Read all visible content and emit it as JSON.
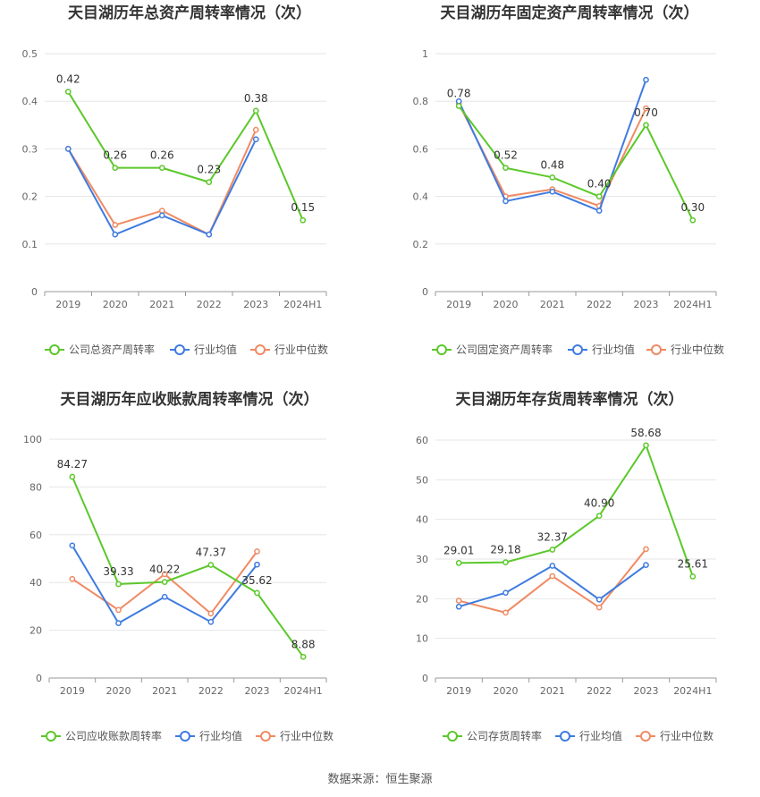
{
  "source_note": "数据来源：恒生聚源",
  "chart_data": [
    {
      "type": "line",
      "title": "天目湖历年总资产周转率情况（次）",
      "categories": [
        "2019",
        "2020",
        "2021",
        "2022",
        "2023",
        "2024H1"
      ],
      "ylim": [
        0,
        0.5
      ],
      "yticks": [
        "0",
        "0.1",
        "0.2",
        "0.3",
        "0.4",
        "0.5"
      ],
      "legend_position": "bottom",
      "grid": true,
      "series": [
        {
          "name": "公司总资产周转率",
          "color": "#5bc82a",
          "values": [
            0.42,
            0.26,
            0.26,
            0.23,
            0.38,
            0.15
          ],
          "data_labels": [
            "0.42",
            "0.26",
            "0.26",
            "0.23",
            "0.38",
            "0.15"
          ]
        },
        {
          "name": "行业均值",
          "color": "#3f7be0",
          "values": [
            0.3,
            0.12,
            0.16,
            0.12,
            0.32,
            null
          ]
        },
        {
          "name": "行业中位数",
          "color": "#f08a62",
          "values": [
            0.3,
            0.14,
            0.17,
            0.12,
            0.34,
            null
          ]
        }
      ]
    },
    {
      "type": "line",
      "title": "天目湖历年固定资产周转率情况（次）",
      "categories": [
        "2019",
        "2020",
        "2021",
        "2022",
        "2023",
        "2024H1"
      ],
      "ylim": [
        0,
        1
      ],
      "yticks": [
        "0",
        "0.2",
        "0.4",
        "0.6",
        "0.8",
        "1"
      ],
      "legend_position": "bottom",
      "grid": true,
      "series": [
        {
          "name": "公司固定资产周转率",
          "color": "#5bc82a",
          "values": [
            0.78,
            0.52,
            0.48,
            0.4,
            0.7,
            0.3
          ],
          "data_labels": [
            "0.78",
            "0.52",
            "0.48",
            "0.40",
            "0.70",
            "0.30"
          ]
        },
        {
          "name": "行业均值",
          "color": "#3f7be0",
          "values": [
            0.8,
            0.38,
            0.42,
            0.34,
            0.89,
            null
          ]
        },
        {
          "name": "行业中位数",
          "color": "#f08a62",
          "values": [
            0.79,
            0.4,
            0.43,
            0.36,
            0.77,
            null
          ]
        }
      ]
    },
    {
      "type": "line",
      "title": "天目湖历年应收账款周转率情况（次）",
      "categories": [
        "2019",
        "2020",
        "2021",
        "2022",
        "2023",
        "2024H1"
      ],
      "ylim": [
        0,
        100
      ],
      "yticks": [
        "0",
        "20",
        "40",
        "60",
        "80",
        "100"
      ],
      "legend_position": "bottom",
      "grid": true,
      "series": [
        {
          "name": "公司应收账款周转率",
          "color": "#5bc82a",
          "values": [
            84.27,
            39.33,
            40.22,
            47.37,
            35.62,
            8.88
          ],
          "data_labels": [
            "84.27",
            "39.33",
            "40.22",
            "47.37",
            "35.62",
            "8.88"
          ]
        },
        {
          "name": "行业均值",
          "color": "#3f7be0",
          "values": [
            55.5,
            23.0,
            34.0,
            23.5,
            47.5,
            null
          ]
        },
        {
          "name": "行业中位数",
          "color": "#f08a62",
          "values": [
            41.5,
            28.5,
            43.5,
            27.0,
            53.0,
            null
          ]
        }
      ]
    },
    {
      "type": "line",
      "title": "天目湖历年存货周转率情况（次）",
      "categories": [
        "2019",
        "2020",
        "2021",
        "2022",
        "2023",
        "2024H1"
      ],
      "ylim": [
        0,
        60
      ],
      "yticks": [
        "0",
        "10",
        "20",
        "30",
        "40",
        "50",
        "60"
      ],
      "legend_position": "bottom",
      "grid": true,
      "series": [
        {
          "name": "公司存货周转率",
          "color": "#5bc82a",
          "values": [
            29.01,
            29.18,
            32.37,
            40.9,
            58.68,
            25.61
          ],
          "data_labels": [
            "29.01",
            "29.18",
            "32.37",
            "40.90",
            "58.68",
            "25.61"
          ]
        },
        {
          "name": "行业均值",
          "color": "#3f7be0",
          "values": [
            18.0,
            21.5,
            28.3,
            19.8,
            28.5,
            null
          ]
        },
        {
          "name": "行业中位数",
          "color": "#f08a62",
          "values": [
            19.5,
            16.5,
            25.7,
            17.8,
            32.5,
            null
          ]
        }
      ]
    }
  ]
}
